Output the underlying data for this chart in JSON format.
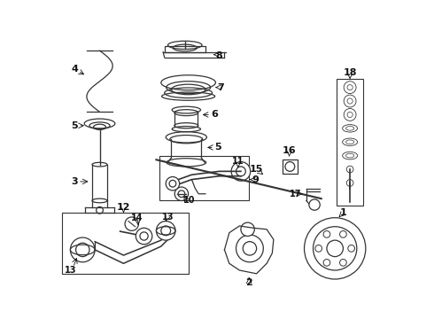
{
  "bg_color": "#ffffff",
  "lc": "#333333",
  "fig_width": 4.9,
  "fig_height": 3.6,
  "dpi": 100
}
